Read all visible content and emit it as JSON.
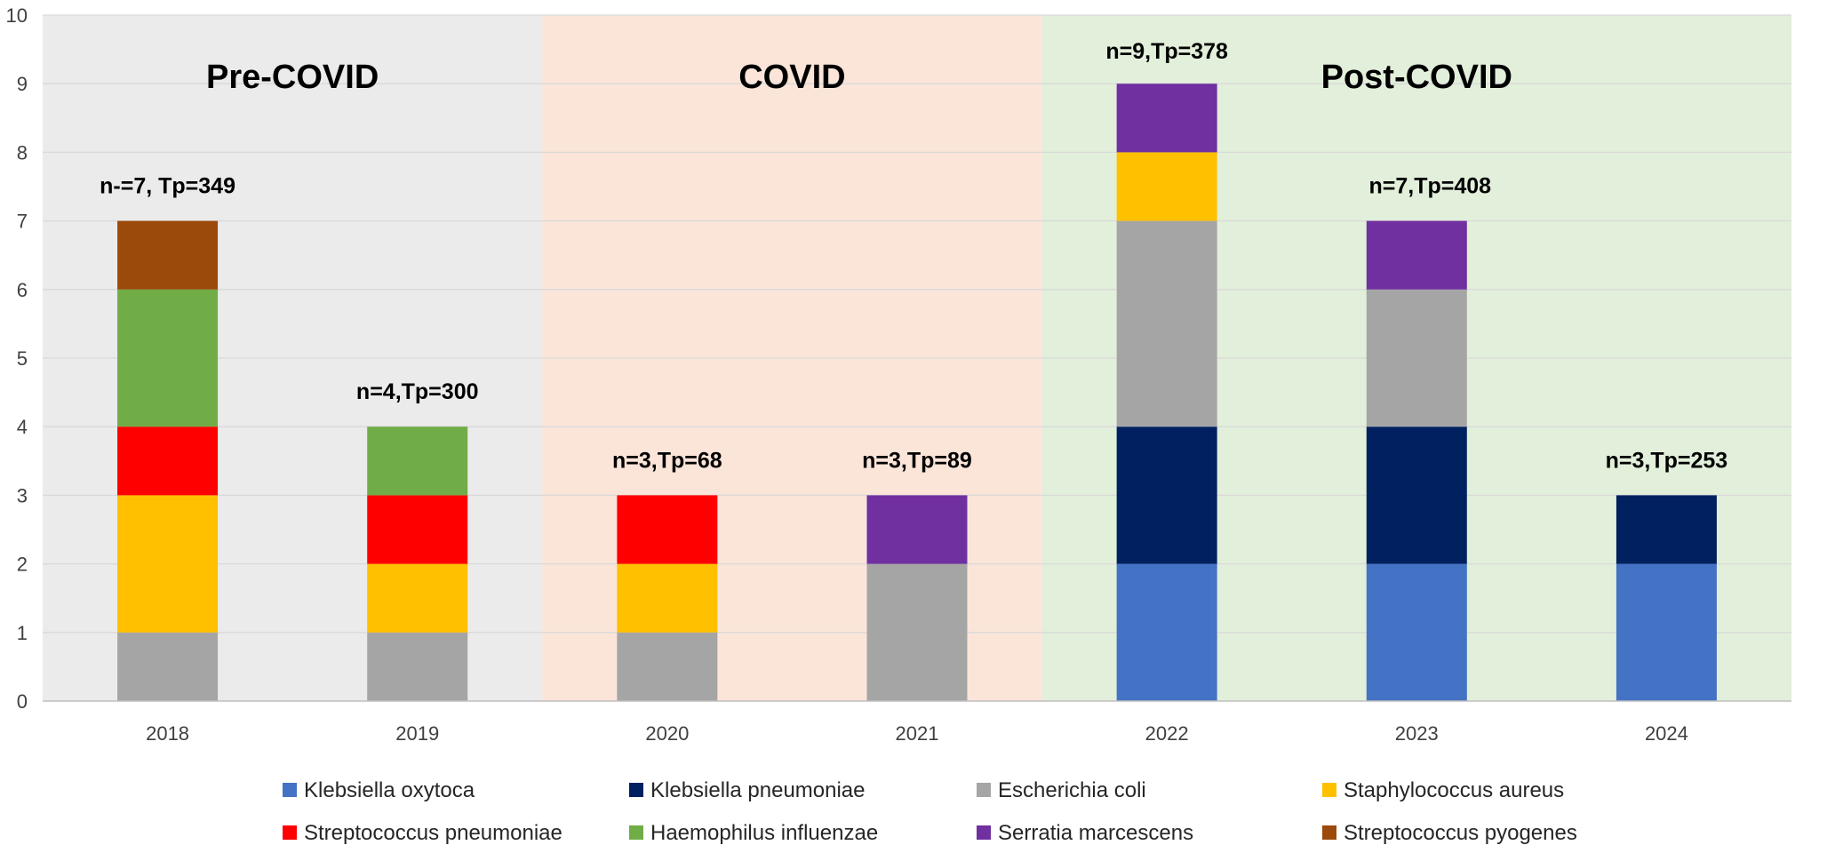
{
  "chart_data": {
    "type": "bar",
    "stacked": true,
    "title": "",
    "xlabel": "",
    "ylabel": "",
    "ylim": [
      0,
      10
    ],
    "yticks": [
      "0",
      "1",
      "2",
      "3",
      "4",
      "5",
      "6",
      "7",
      "8",
      "9",
      "10"
    ],
    "grid": true,
    "legend_position": "bottom",
    "categories": [
      "2018",
      "2019",
      "2020",
      "2021",
      "2022",
      "2023",
      "2024"
    ],
    "series": [
      {
        "name": "Klebsiella oxytoca",
        "color": "#4472C4",
        "values": [
          0,
          0,
          0,
          0,
          2,
          2,
          2
        ]
      },
      {
        "name": "Klebsiella pneumoniae",
        "color": "#002060",
        "values": [
          0,
          0,
          0,
          0,
          2,
          2,
          1
        ]
      },
      {
        "name": "Escherichia coli",
        "color": "#A5A5A5",
        "values": [
          1,
          1,
          1,
          2,
          3,
          2,
          0
        ]
      },
      {
        "name": "Staphylococcus aureus",
        "color": "#FFC000",
        "values": [
          2,
          1,
          1,
          0,
          1,
          0,
          0
        ]
      },
      {
        "name": "Streptococcus pneumoniae",
        "color": "#FF0000",
        "values": [
          1,
          1,
          1,
          0,
          0,
          0,
          0
        ]
      },
      {
        "name": "Haemophilus influenzae",
        "color": "#70AD47",
        "values": [
          2,
          1,
          0,
          0,
          0,
          0,
          0
        ]
      },
      {
        "name": "Serratia marcescens",
        "color": "#7030A0",
        "values": [
          0,
          0,
          0,
          1,
          1,
          1,
          0
        ]
      },
      {
        "name": "Streptococcus pyogenes",
        "color": "#9C4A0C",
        "values": [
          1,
          0,
          0,
          0,
          0,
          0,
          0
        ]
      }
    ],
    "periods": [
      {
        "label": "Pre-COVID",
        "categories": [
          "2018",
          "2019"
        ],
        "color": "#EBEBEB"
      },
      {
        "label": "COVID",
        "categories": [
          "2020",
          "2021"
        ],
        "color": "#FBE5D9"
      },
      {
        "label": "Post-COVID",
        "categories": [
          "2022",
          "2023",
          "2024"
        ],
        "color": "#E2EFDA"
      }
    ],
    "annotations": [
      {
        "category": "2018",
        "text": "n-=7, Tp=349"
      },
      {
        "category": "2019",
        "text": "n=4,Tp=300"
      },
      {
        "category": "2020",
        "text": "n=3,Tp=68"
      },
      {
        "category": "2021",
        "text": "n=3,Tp=89"
      },
      {
        "category": "2022",
        "text": "n=9,Tp=378"
      },
      {
        "category": "2023",
        "text": "n=7,Tp=408"
      },
      {
        "category": "2024",
        "text": "n=3,Tp=253"
      }
    ]
  }
}
